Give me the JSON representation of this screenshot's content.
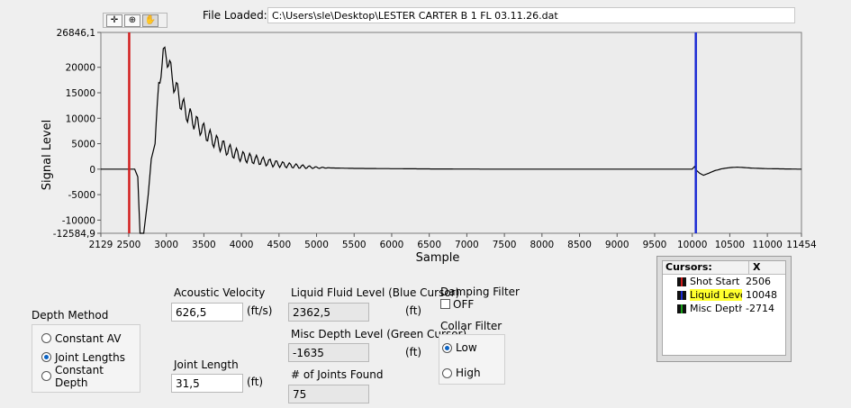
{
  "file": {
    "label": "File Loaded:",
    "path": "C:\\Users\\sle\\Desktop\\LESTER CARTER B 1 FL 03.11.26.dat"
  },
  "toolbar": {
    "tools": [
      "crosshair-cursor",
      "zoom",
      "pan-hand"
    ]
  },
  "chart_data": {
    "type": "line",
    "xlabel": "Sample",
    "ylabel": "Signal Level",
    "xlim": [
      2129,
      11454
    ],
    "ylim": [
      -12584.9,
      26846.1
    ],
    "x_ticks": [
      2129,
      2500,
      3000,
      3500,
      4000,
      4500,
      5000,
      5500,
      6000,
      6500,
      7000,
      7500,
      8000,
      8500,
      9000,
      9500,
      10000,
      10500,
      11000,
      11454
    ],
    "x_tick_labels": [
      "2129",
      "2500",
      "3000",
      "3500",
      "4000",
      "4500",
      "5000",
      "5500",
      "6000",
      "6500",
      "7000",
      "7500",
      "8000",
      "8500",
      "9000",
      "9500",
      "10000",
      "10500",
      "11000",
      "11454"
    ],
    "y_ticks": [
      -12584.9,
      -10000,
      -5000,
      0,
      5000,
      10000,
      15000,
      20000,
      26846.1
    ],
    "y_tick_labels": [
      "-12584,9",
      "-10000",
      "-5000",
      "0",
      "5000",
      "10000",
      "15000",
      "20000",
      "26846,1"
    ],
    "grid": false,
    "series": [
      {
        "color": "#000000",
        "x": [
          2129,
          2580,
          2620,
          2650,
          2700,
          2760,
          2800,
          2850,
          2880,
          2900,
          2930,
          2960,
          3000,
          3030,
          3060,
          3100,
          3150,
          3200,
          3250,
          3300,
          3400,
          3500,
          3600,
          3700,
          3800,
          3900,
          4000,
          4200,
          4400,
          4600,
          4800,
          5000,
          5500,
          6000,
          6500,
          7000,
          7500,
          8000,
          8500,
          9000,
          9500,
          9800,
          10000,
          10030,
          10060,
          10100,
          10150,
          10200,
          10300,
          10400,
          10500,
          10600,
          10700,
          10800,
          10900,
          11000,
          11454
        ],
        "y": [
          0,
          0,
          -1500,
          -12584.9,
          -12584.9,
          -5000,
          2000,
          5000,
          13000,
          17000,
          20000,
          22000,
          23000,
          21000,
          19000,
          17000,
          15000,
          13000,
          11500,
          10500,
          9000,
          7500,
          6000,
          5000,
          4000,
          3200,
          2500,
          1800,
          1200,
          800,
          500,
          300,
          150,
          100,
          50,
          20,
          0,
          0,
          0,
          0,
          0,
          0,
          0,
          500,
          -300,
          -800,
          -1200,
          -900,
          -300,
          100,
          300,
          400,
          300,
          200,
          150,
          100,
          0
        ]
      }
    ],
    "cursors": [
      {
        "name": "Shot Start",
        "x": 2506,
        "color": "#d21d1d"
      },
      {
        "name": "Liquid Level",
        "x": 10048,
        "color": "#1c2bd4"
      },
      {
        "name": "Misc Depth",
        "x": -2714,
        "color": "#1aa31a"
      }
    ]
  },
  "depth_method": {
    "title": "Depth Method",
    "options": [
      {
        "label": "Constant AV",
        "selected": false
      },
      {
        "label": "Joint Lengths",
        "selected": true
      },
      {
        "label": "Constant Depth",
        "selected": false
      }
    ]
  },
  "acoustic_velocity": {
    "label": "Acoustic Velocity",
    "value": "626,5",
    "unit": "(ft/s)"
  },
  "joint_length": {
    "label": "Joint Length",
    "value": "31,5",
    "unit": "(ft)"
  },
  "liquid_level": {
    "label": "Liquid Fluid Level (Blue Cursor)",
    "value": "2362,5",
    "unit": "(ft)"
  },
  "misc_depth": {
    "label": "Misc Depth Level (Green Cursor)",
    "value": "-1635",
    "unit": "(ft)"
  },
  "joints_found": {
    "label": "# of Joints Found",
    "value": "75"
  },
  "damping_filter": {
    "label": "Damping Filter",
    "state_label": "OFF"
  },
  "collar_filter": {
    "label": "Collar Filter",
    "options": [
      {
        "label": "Low",
        "selected": true
      },
      {
        "label": "High",
        "selected": false
      }
    ]
  },
  "cursor_table": {
    "header_name": "Cursors:",
    "header_x": "X",
    "rows": [
      {
        "name": "Shot Start",
        "x": "2506",
        "color": "#d21d1d"
      },
      {
        "name": "Liquid Leve",
        "x": "10048",
        "color": "#1c2bd4"
      },
      {
        "name": "Misc Depth",
        "x": "-2714",
        "color": "#1aa31a"
      }
    ]
  }
}
